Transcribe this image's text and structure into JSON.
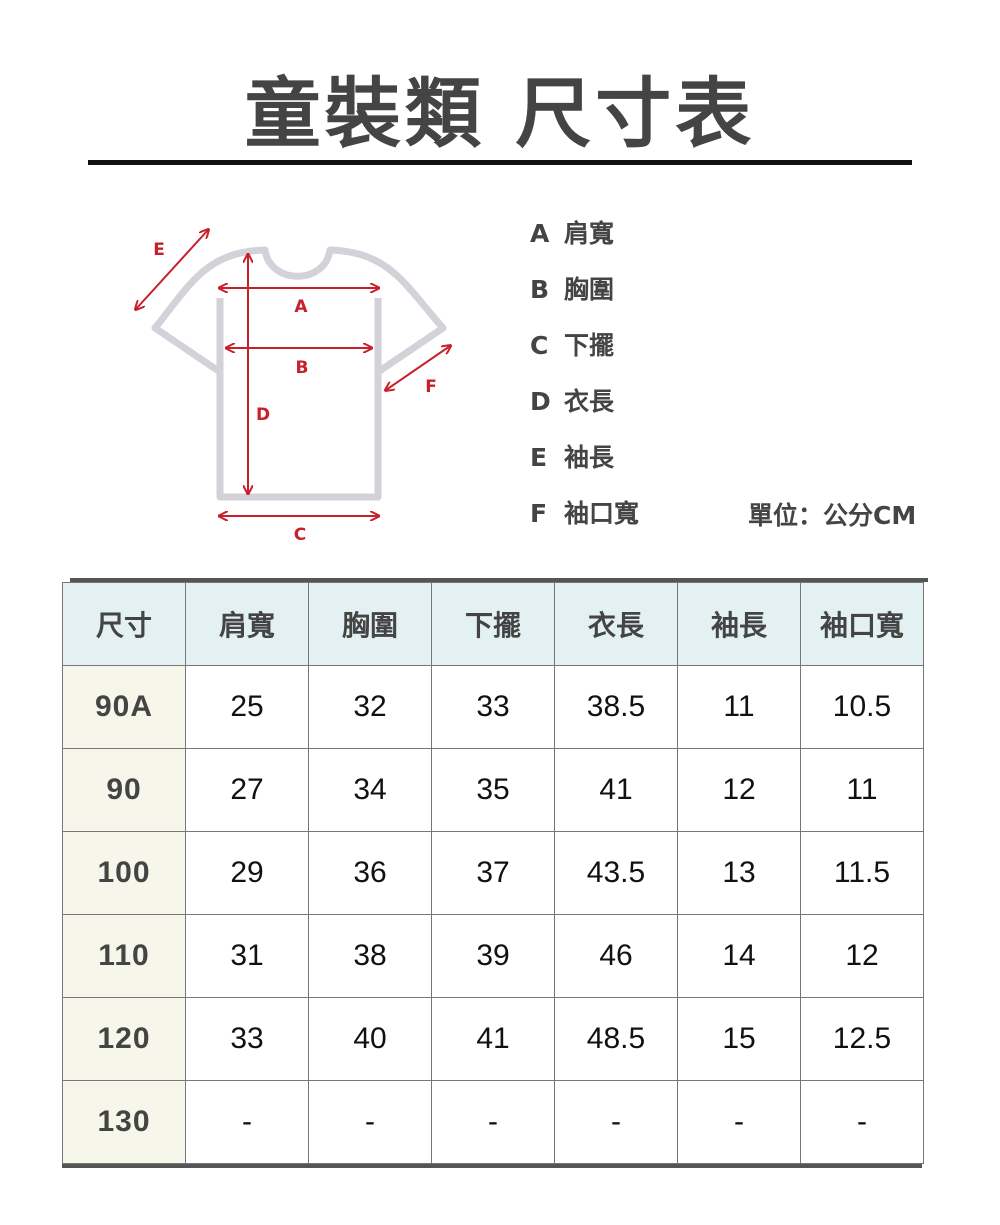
{
  "title": "童裝類  尺寸表",
  "diagram": {
    "labels": [
      "A",
      "B",
      "C",
      "D",
      "E",
      "F"
    ],
    "outline_color": "#d2d2d8",
    "arrow_color": "#c8202b"
  },
  "legend": [
    {
      "key": "A",
      "label": "肩寬"
    },
    {
      "key": "B",
      "label": "胸圍"
    },
    {
      "key": "C",
      "label": "下擺"
    },
    {
      "key": "D",
      "label": "衣長"
    },
    {
      "key": "E",
      "label": "袖長"
    },
    {
      "key": "F",
      "label": "袖口寬"
    }
  ],
  "unit": "單位：公分CM",
  "table": {
    "headers": [
      "尺寸",
      "肩寬",
      "胸圍",
      "下擺",
      "衣長",
      "袖長",
      "袖口寬"
    ],
    "rows": [
      [
        "90A",
        "25",
        "32",
        "33",
        "38.5",
        "11",
        "10.5"
      ],
      [
        "90",
        "27",
        "34",
        "35",
        "41",
        "12",
        "11"
      ],
      [
        "100",
        "29",
        "36",
        "37",
        "43.5",
        "13",
        "11.5"
      ],
      [
        "110",
        "31",
        "38",
        "39",
        "46",
        "14",
        "12"
      ],
      [
        "120",
        "33",
        "40",
        "41",
        "48.5",
        "15",
        "12.5"
      ],
      [
        "130",
        "-",
        "-",
        "-",
        "-",
        "-",
        "-"
      ]
    ],
    "header_bg": "#e4f1f2",
    "size_col_bg": "#f7f6ea"
  }
}
